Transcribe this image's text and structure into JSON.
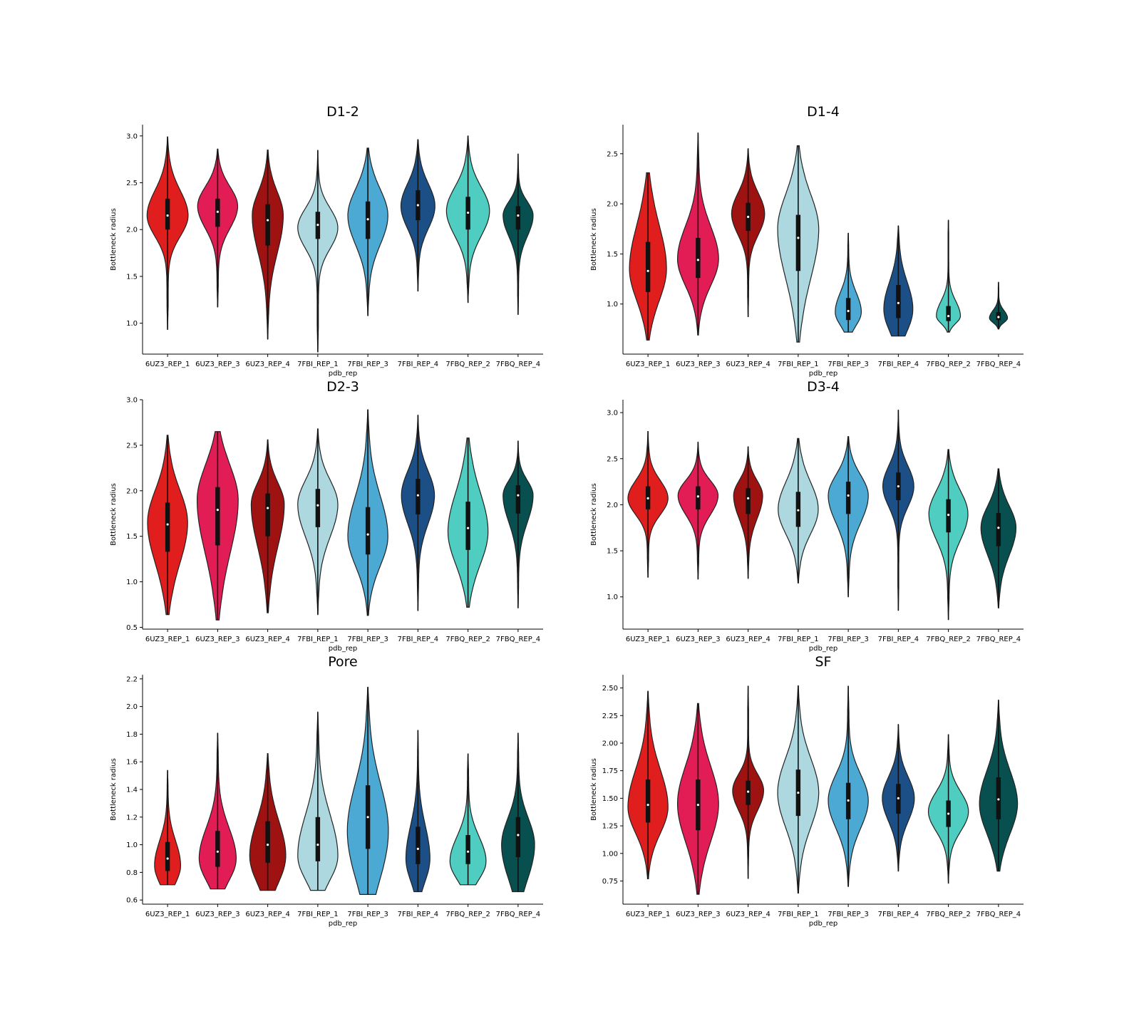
{
  "figure": {
    "colors": [
      "#e11e1e",
      "#e21d55",
      "#9e1212",
      "#add8e0",
      "#4ba9d4",
      "#1c4f86",
      "#4ecdc0",
      "#07504f"
    ],
    "outline_color": "#222222"
  },
  "chart_data": [
    {
      "type": "violin",
      "title": "D1-2",
      "xlabel": "pdb_rep",
      "ylabel": "Bottleneck radius",
      "categories": [
        "6UZ3_REP_1",
        "6UZ3_REP_3",
        "6UZ3_REP_4",
        "7FBI_REP_1",
        "7FBI_REP_3",
        "7FBI_REP_4",
        "7FBQ_REP_2",
        "7FBQ_REP_4"
      ],
      "yticks": [
        "1.0",
        "1.5",
        "2.0",
        "2.5",
        "3.0"
      ],
      "ylim": [
        0.67,
        3.12
      ],
      "grid": false,
      "series": [
        {
          "min": 0.93,
          "q1": 2.0,
          "median": 2.15,
          "q3": 2.33,
          "max": 2.99,
          "mode": 2.15,
          "width": 0.82
        },
        {
          "min": 1.17,
          "q1": 2.03,
          "median": 2.19,
          "q3": 2.33,
          "max": 2.86,
          "mode": 2.25,
          "width": 0.8
        },
        {
          "min": 0.83,
          "q1": 1.83,
          "median": 2.1,
          "q3": 2.27,
          "max": 2.85,
          "mode": 2.15,
          "width": 0.62
        },
        {
          "min": 0.69,
          "q1": 1.9,
          "median": 2.05,
          "q3": 2.19,
          "max": 2.85,
          "mode": 2.02,
          "width": 0.8
        },
        {
          "min": 1.08,
          "q1": 1.9,
          "median": 2.11,
          "q3": 2.3,
          "max": 2.87,
          "mode": 2.15,
          "width": 0.8
        },
        {
          "min": 1.34,
          "q1": 2.1,
          "median": 2.26,
          "q3": 2.42,
          "max": 2.96,
          "mode": 2.25,
          "width": 0.68
        },
        {
          "min": 1.22,
          "q1": 2.0,
          "median": 2.18,
          "q3": 2.35,
          "max": 3.0,
          "mode": 2.2,
          "width": 0.86
        },
        {
          "min": 1.09,
          "q1": 2.0,
          "median": 2.15,
          "q3": 2.25,
          "max": 2.81,
          "mode": 2.15,
          "width": 0.6
        }
      ]
    },
    {
      "type": "violin",
      "title": "D1-4",
      "xlabel": "pdb_rep",
      "ylabel": "Bottleneck radius",
      "categories": [
        "6UZ3_REP_1",
        "6UZ3_REP_3",
        "6UZ3_REP_4",
        "7FBI_REP_1",
        "7FBI_REP_3",
        "7FBI_REP_4",
        "7FBQ_REP_2",
        "7FBQ_REP_4"
      ],
      "yticks": [
        "1.0",
        "1.5",
        "2.0",
        "2.5"
      ],
      "ylim": [
        0.5,
        2.79
      ],
      "grid": false,
      "series": [
        {
          "min": 0.64,
          "q1": 1.12,
          "median": 1.33,
          "q3": 1.62,
          "max": 2.31,
          "mode": 1.35,
          "width": 0.74
        },
        {
          "min": 0.69,
          "q1": 1.26,
          "median": 1.44,
          "q3": 1.66,
          "max": 2.71,
          "mode": 1.45,
          "width": 0.82
        },
        {
          "min": 0.87,
          "q1": 1.73,
          "median": 1.87,
          "q3": 2.01,
          "max": 2.55,
          "mode": 1.9,
          "width": 0.66
        },
        {
          "min": 0.62,
          "q1": 1.33,
          "median": 1.66,
          "q3": 1.89,
          "max": 2.58,
          "mode": 1.75,
          "width": 0.82
        },
        {
          "min": 0.72,
          "q1": 0.84,
          "median": 0.93,
          "q3": 1.06,
          "max": 1.71,
          "mode": 0.92,
          "width": 0.52
        },
        {
          "min": 0.68,
          "q1": 0.86,
          "median": 1.01,
          "q3": 1.19,
          "max": 1.78,
          "mode": 0.95,
          "width": 0.58
        },
        {
          "min": 0.72,
          "q1": 0.83,
          "median": 0.88,
          "q3": 0.98,
          "max": 1.84,
          "mode": 0.88,
          "width": 0.48
        },
        {
          "min": 0.75,
          "q1": 0.84,
          "median": 0.87,
          "q3": 0.92,
          "max": 1.22,
          "mode": 0.86,
          "width": 0.36
        }
      ]
    },
    {
      "type": "violin",
      "title": "D2-3",
      "xlabel": "pdb_rep",
      "ylabel": "Bottleneck radius",
      "categories": [
        "6UZ3_REP_1",
        "6UZ3_REP_3",
        "6UZ3_REP_4",
        "7FBI_REP_1",
        "7FBI_REP_3",
        "7FBI_REP_4",
        "7FBQ_REP_2",
        "7FBQ_REP_4"
      ],
      "yticks": [
        "0.5",
        "1.0",
        "1.5",
        "2.0",
        "2.5",
        "3.0"
      ],
      "ylim": [
        0.48,
        3.0
      ],
      "grid": false,
      "series": [
        {
          "min": 0.64,
          "q1": 1.33,
          "median": 1.63,
          "q3": 1.87,
          "max": 2.61,
          "mode": 1.65,
          "width": 0.8
        },
        {
          "min": 0.58,
          "q1": 1.4,
          "median": 1.79,
          "q3": 2.04,
          "max": 2.65,
          "mode": 1.9,
          "width": 0.82
        },
        {
          "min": 0.66,
          "q1": 1.5,
          "median": 1.81,
          "q3": 1.97,
          "max": 2.56,
          "mode": 1.85,
          "width": 0.66
        },
        {
          "min": 0.64,
          "q1": 1.6,
          "median": 1.84,
          "q3": 2.02,
          "max": 2.68,
          "mode": 1.85,
          "width": 0.8
        },
        {
          "min": 0.63,
          "q1": 1.3,
          "median": 1.52,
          "q3": 1.82,
          "max": 2.89,
          "mode": 1.5,
          "width": 0.8
        },
        {
          "min": 0.68,
          "q1": 1.74,
          "median": 1.95,
          "q3": 2.13,
          "max": 2.83,
          "mode": 1.95,
          "width": 0.66
        },
        {
          "min": 0.72,
          "q1": 1.35,
          "median": 1.59,
          "q3": 1.88,
          "max": 2.58,
          "mode": 1.55,
          "width": 0.8
        },
        {
          "min": 0.71,
          "q1": 1.75,
          "median": 1.95,
          "q3": 2.06,
          "max": 2.55,
          "mode": 1.95,
          "width": 0.6
        }
      ]
    },
    {
      "type": "violin",
      "title": "D3-4",
      "xlabel": "pdb_rep",
      "ylabel": "Bottleneck radius",
      "categories": [
        "6UZ3_REP_1",
        "6UZ3_REP_3",
        "6UZ3_REP_4",
        "7FBI_REP_1",
        "7FBI_REP_3",
        "7FBI_REP_4",
        "7FBQ_REP_2",
        "7FBQ_REP_4"
      ],
      "yticks": [
        "1.0",
        "1.5",
        "2.0",
        "2.5",
        "3.0"
      ],
      "ylim": [
        0.65,
        3.14
      ],
      "grid": false,
      "series": [
        {
          "min": 1.21,
          "q1": 1.95,
          "median": 2.07,
          "q3": 2.2,
          "max": 2.8,
          "mode": 2.07,
          "width": 0.8
        },
        {
          "min": 1.19,
          "q1": 1.95,
          "median": 2.09,
          "q3": 2.2,
          "max": 2.68,
          "mode": 2.1,
          "width": 0.8
        },
        {
          "min": 1.2,
          "q1": 1.9,
          "median": 2.07,
          "q3": 2.18,
          "max": 2.63,
          "mode": 2.1,
          "width": 0.58
        },
        {
          "min": 1.15,
          "q1": 1.76,
          "median": 1.94,
          "q3": 2.14,
          "max": 2.72,
          "mode": 1.95,
          "width": 0.8
        },
        {
          "min": 1.0,
          "q1": 1.9,
          "median": 2.1,
          "q3": 2.25,
          "max": 2.74,
          "mode": 2.1,
          "width": 0.8
        },
        {
          "min": 0.85,
          "q1": 2.05,
          "median": 2.2,
          "q3": 2.35,
          "max": 3.03,
          "mode": 2.2,
          "width": 0.62
        },
        {
          "min": 0.75,
          "q1": 1.7,
          "median": 1.89,
          "q3": 2.06,
          "max": 2.6,
          "mode": 1.9,
          "width": 0.78
        },
        {
          "min": 0.88,
          "q1": 1.55,
          "median": 1.75,
          "q3": 1.91,
          "max": 2.39,
          "mode": 1.75,
          "width": 0.7
        }
      ]
    },
    {
      "type": "violin",
      "title": "Pore",
      "xlabel": "pdb_rep",
      "ylabel": "Bottleneck radius",
      "categories": [
        "6UZ3_REP_1",
        "6UZ3_REP_3",
        "6UZ3_REP_4",
        "7FBI_REP_1",
        "7FBI_REP_3",
        "7FBI_REP_4",
        "7FBQ_REP_2",
        "7FBQ_REP_4"
      ],
      "yticks": [
        "0.6",
        "0.8",
        "1.0",
        "1.2",
        "1.4",
        "1.6",
        "1.8",
        "2.0",
        "2.2"
      ],
      "ylim": [
        0.57,
        2.23
      ],
      "grid": false,
      "series": [
        {
          "min": 0.71,
          "q1": 0.81,
          "median": 0.9,
          "q3": 1.02,
          "max": 1.54,
          "mode": 0.85,
          "width": 0.52
        },
        {
          "min": 0.68,
          "q1": 0.84,
          "median": 0.95,
          "q3": 1.1,
          "max": 1.81,
          "mode": 0.9,
          "width": 0.74
        },
        {
          "min": 0.67,
          "q1": 0.87,
          "median": 1.0,
          "q3": 1.17,
          "max": 1.66,
          "mode": 0.92,
          "width": 0.72
        },
        {
          "min": 0.67,
          "q1": 0.88,
          "median": 1.0,
          "q3": 1.2,
          "max": 1.96,
          "mode": 0.92,
          "width": 0.8
        },
        {
          "min": 0.64,
          "q1": 0.97,
          "median": 1.2,
          "q3": 1.43,
          "max": 2.14,
          "mode": 1.1,
          "width": 0.82
        },
        {
          "min": 0.66,
          "q1": 0.86,
          "median": 0.97,
          "q3": 1.13,
          "max": 1.83,
          "mode": 0.9,
          "width": 0.48
        },
        {
          "min": 0.71,
          "q1": 0.86,
          "median": 0.95,
          "q3": 1.07,
          "max": 1.66,
          "mode": 0.88,
          "width": 0.72
        },
        {
          "min": 0.66,
          "q1": 0.91,
          "median": 1.07,
          "q3": 1.2,
          "max": 1.81,
          "mode": 1.0,
          "width": 0.66
        }
      ]
    },
    {
      "type": "violin",
      "title": "SF",
      "xlabel": "pdb_rep",
      "ylabel": "Bottleneck radius",
      "categories": [
        "6UZ3_REP_1",
        "6UZ3_REP_3",
        "6UZ3_REP_4",
        "7FBI_REP_1",
        "7FBI_REP_3",
        "7FBI_REP_4",
        "7FBQ_REP_2",
        "7FBQ_REP_4"
      ],
      "yticks": [
        "0.75",
        "1.00",
        "1.25",
        "1.50",
        "1.75",
        "2.00",
        "2.25",
        "2.50"
      ],
      "ylim": [
        0.54,
        2.62
      ],
      "grid": false,
      "series": [
        {
          "min": 0.77,
          "q1": 1.28,
          "median": 1.44,
          "q3": 1.67,
          "max": 2.47,
          "mode": 1.42,
          "width": 0.8
        },
        {
          "min": 0.63,
          "q1": 1.21,
          "median": 1.44,
          "q3": 1.67,
          "max": 2.36,
          "mode": 1.45,
          "width": 0.82
        },
        {
          "min": 0.77,
          "q1": 1.44,
          "median": 1.56,
          "q3": 1.66,
          "max": 2.52,
          "mode": 1.57,
          "width": 0.62
        },
        {
          "min": 0.64,
          "q1": 1.34,
          "median": 1.55,
          "q3": 1.76,
          "max": 2.52,
          "mode": 1.55,
          "width": 0.82
        },
        {
          "min": 0.7,
          "q1": 1.31,
          "median": 1.48,
          "q3": 1.64,
          "max": 2.52,
          "mode": 1.48,
          "width": 0.8
        },
        {
          "min": 0.84,
          "q1": 1.36,
          "median": 1.5,
          "q3": 1.63,
          "max": 2.17,
          "mode": 1.5,
          "width": 0.64
        },
        {
          "min": 0.73,
          "q1": 1.24,
          "median": 1.36,
          "q3": 1.48,
          "max": 2.08,
          "mode": 1.38,
          "width": 0.8
        },
        {
          "min": 0.84,
          "q1": 1.31,
          "median": 1.49,
          "q3": 1.69,
          "max": 2.39,
          "mode": 1.45,
          "width": 0.76
        }
      ]
    }
  ]
}
